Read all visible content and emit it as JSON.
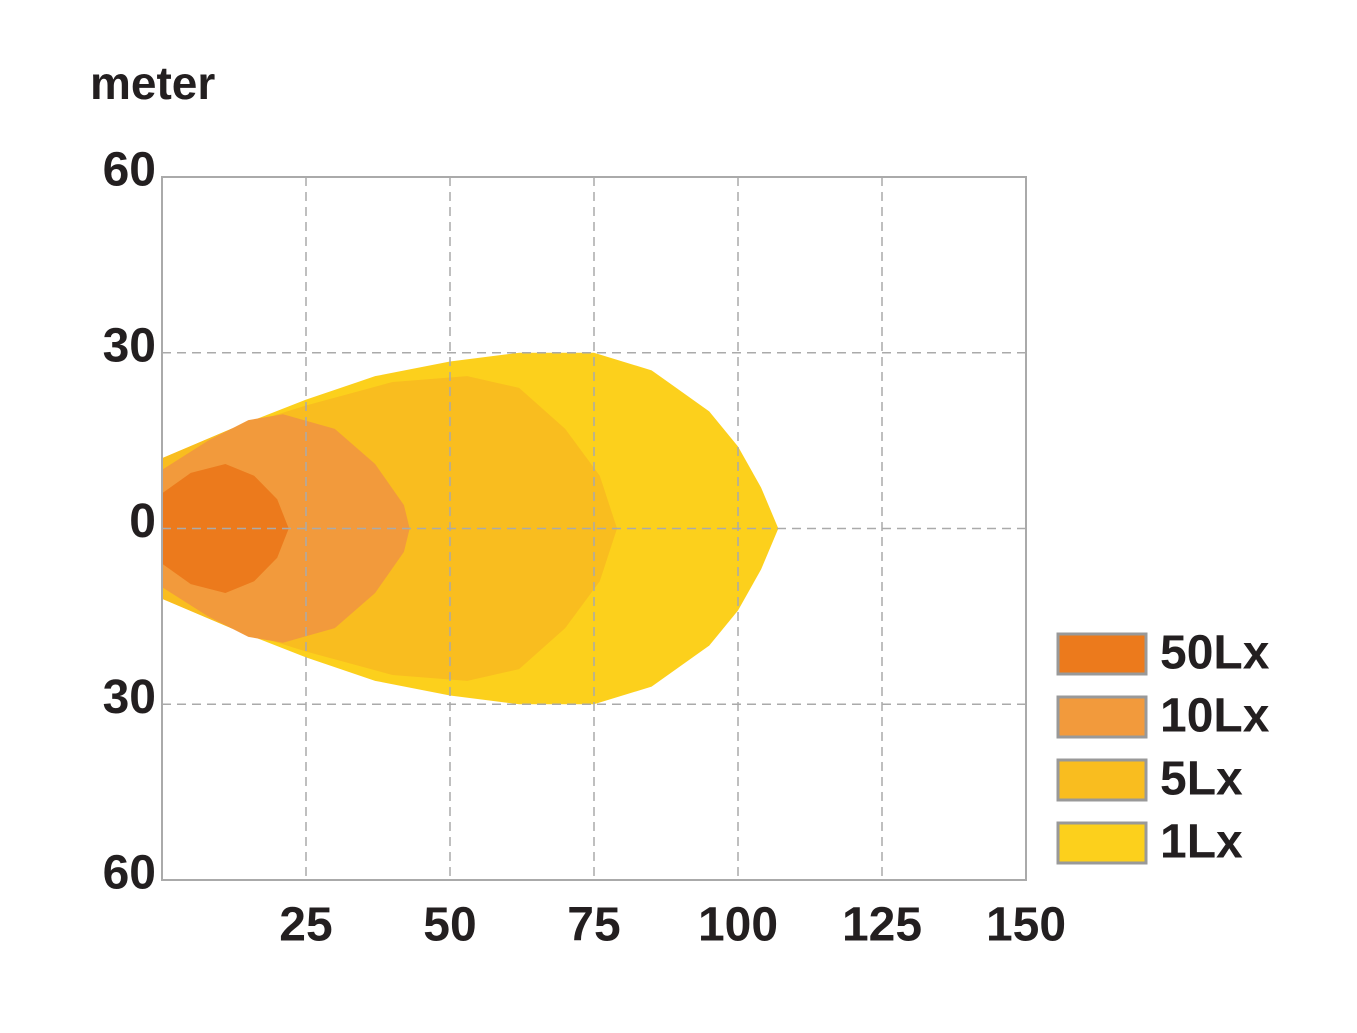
{
  "chart_data": {
    "type": "beam",
    "title": "meter",
    "xlim": [
      0,
      150
    ],
    "xticks": [
      25,
      50,
      75,
      100,
      125,
      150
    ],
    "ylim": [
      -60,
      60
    ],
    "yticks": [
      60,
      30,
      0,
      {
        "value": -30,
        "label": "30"
      },
      {
        "value": -60,
        "label": "60"
      }
    ],
    "grid": true,
    "legend": "right",
    "series": [
      {
        "name": "50Lx",
        "color": "#ec7a1c",
        "x": [
          0,
          5,
          11,
          16,
          20,
          22,
          20,
          16,
          11,
          5,
          0
        ],
        "values": [
          6,
          9.5,
          11,
          9,
          5,
          0,
          -5,
          -9,
          -11,
          -9.5,
          -6
        ]
      },
      {
        "name": "10Lx",
        "color": "#f29a3c",
        "x": [
          0,
          8,
          15,
          21,
          30,
          37,
          42,
          43,
          42,
          37,
          30,
          21,
          15,
          8,
          0
        ],
        "values": [
          10,
          15,
          18.5,
          19.5,
          17,
          11,
          4,
          0,
          -4,
          -11,
          -17,
          -19.5,
          -18.5,
          -15,
          -10
        ]
      },
      {
        "name": "5Lx",
        "color": "#f9bd1f",
        "x": [
          0,
          12,
          25,
          40,
          53,
          62,
          70,
          76,
          79,
          76,
          70,
          62,
          53,
          40,
          25,
          12,
          0
        ],
        "values": [
          12,
          17,
          21,
          25,
          26,
          24,
          17,
          9,
          0,
          -9,
          -17,
          -24,
          -26,
          -25,
          -21,
          -17,
          -12
        ]
      },
      {
        "name": "1Lx",
        "color": "#fcd01c",
        "x": [
          0,
          12,
          25,
          37,
          50,
          62,
          75,
          85,
          95,
          100,
          104,
          107,
          104,
          100,
          95,
          85,
          75,
          62,
          50,
          37,
          25,
          12,
          0
        ],
        "values": [
          12,
          17,
          22,
          26,
          28.5,
          30,
          30,
          27,
          20,
          14,
          7,
          0,
          -7,
          -14,
          -20,
          -27,
          -30,
          -30,
          -28.5,
          -26,
          -22,
          -17,
          -12
        ]
      }
    ]
  }
}
